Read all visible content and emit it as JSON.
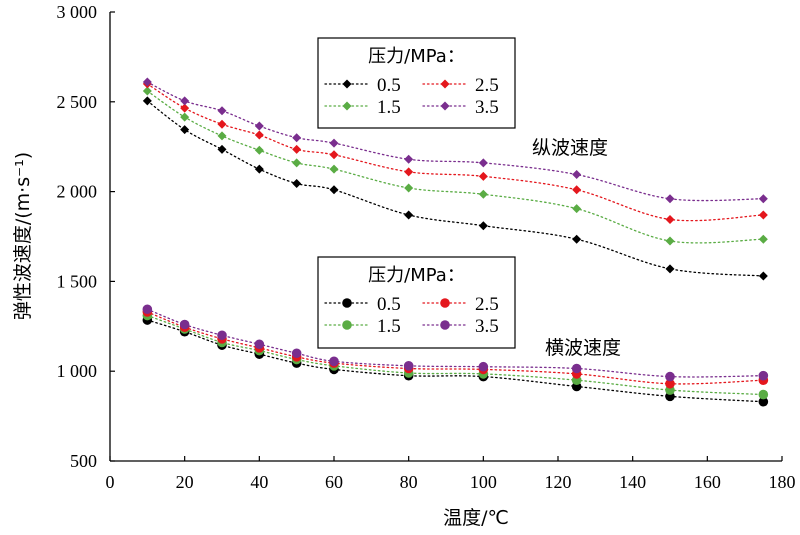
{
  "chart_data": {
    "type": "line",
    "xlabel": "温度/℃",
    "ylabel": "弹性波速度/(m·s⁻¹)",
    "xlim": [
      0,
      180
    ],
    "ylim": [
      500,
      3000
    ],
    "x_ticks": [
      0,
      20,
      40,
      60,
      80,
      100,
      120,
      140,
      160,
      180
    ],
    "y_ticks": [
      500,
      1000,
      1500,
      2000,
      2500,
      3000
    ],
    "x_tick_labels": [
      "0",
      "20",
      "40",
      "60",
      "80",
      "100",
      "120",
      "140",
      "160",
      "180"
    ],
    "y_tick_labels": [
      "500",
      "1 000",
      "1 500",
      "2 000",
      "2 500",
      "3 000"
    ],
    "x": [
      10,
      20,
      30,
      40,
      50,
      60,
      80,
      100,
      125,
      150,
      175
    ],
    "groups": [
      {
        "annotation": "纵波速度",
        "legend_title": "压力/MPa：",
        "marker": "diamond",
        "series": [
          {
            "name": "0.5",
            "color": "#000000",
            "values": [
              2505,
              2345,
              2235,
              2125,
              2045,
              2010,
              1870,
              1810,
              1735,
              1570,
              1530
            ]
          },
          {
            "name": "1.5",
            "color": "#5aac44",
            "values": [
              2560,
              2415,
              2310,
              2230,
              2160,
              2125,
              2020,
              1985,
              1905,
              1725,
              1735
            ]
          },
          {
            "name": "2.5",
            "color": "#e4171d",
            "values": [
              2600,
              2465,
              2375,
              2315,
              2235,
              2205,
              2110,
              2085,
              2010,
              1845,
              1870
            ]
          },
          {
            "name": "3.5",
            "color": "#7a2e8e",
            "values": [
              2610,
              2505,
              2450,
              2365,
              2300,
              2270,
              2180,
              2160,
              2095,
              1960,
              1960
            ]
          }
        ]
      },
      {
        "annotation": "横波速度",
        "legend_title": "压力/MPa：",
        "marker": "circle",
        "series": [
          {
            "name": "0.5",
            "color": "#000000",
            "values": [
              1285,
              1220,
              1145,
              1095,
              1045,
              1010,
              975,
              970,
              915,
              860,
              830
            ]
          },
          {
            "name": "1.5",
            "color": "#5aac44",
            "values": [
              1310,
              1235,
              1160,
              1115,
              1065,
              1030,
              990,
              985,
              950,
              895,
              870
            ]
          },
          {
            "name": "2.5",
            "color": "#e4171d",
            "values": [
              1330,
              1245,
              1180,
              1130,
              1080,
              1045,
              1015,
              1010,
              985,
              930,
              950
            ]
          },
          {
            "name": "3.5",
            "color": "#7a2e8e",
            "values": [
              1345,
              1260,
              1200,
              1150,
              1100,
              1055,
              1030,
              1025,
              1015,
              970,
              975
            ]
          }
        ]
      }
    ]
  }
}
